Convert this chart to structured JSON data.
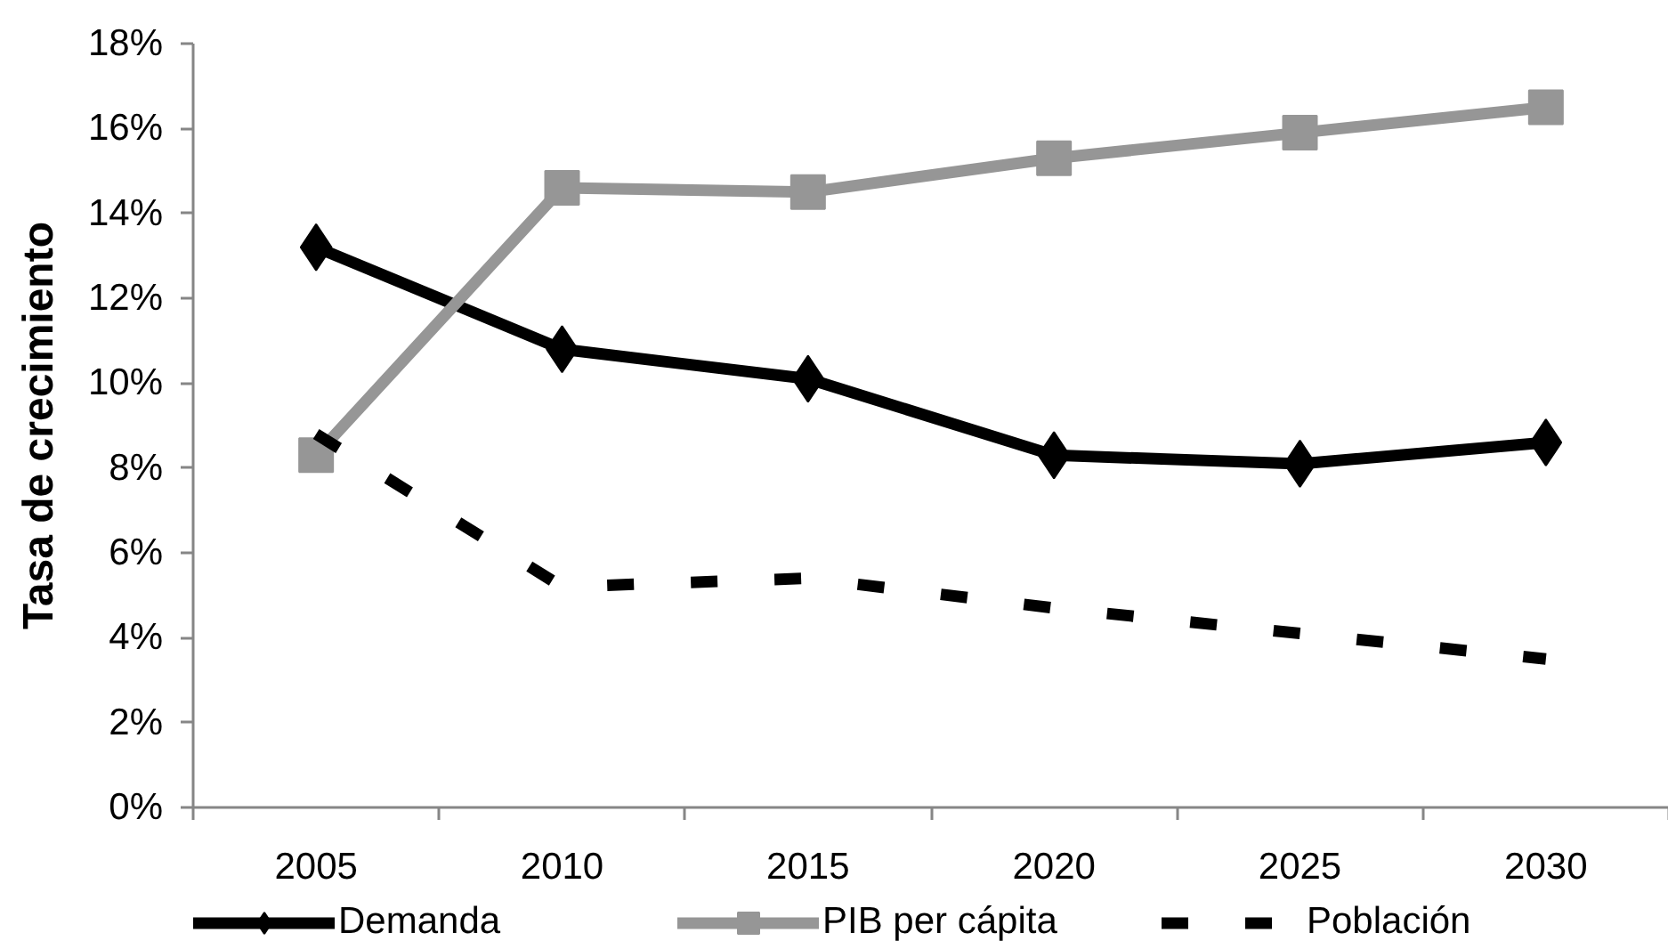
{
  "chart_data": {
    "type": "line",
    "ylabel": "Tasa de crecimiento",
    "categories": [
      "2005",
      "2010",
      "2015",
      "2020",
      "2025",
      "2030"
    ],
    "series": [
      {
        "name": "Demanda",
        "color": "#000000",
        "marker": "diamond",
        "line_style": "solid",
        "values": [
          13.2,
          10.8,
          10.1,
          8.3,
          8.1,
          8.6
        ]
      },
      {
        "name": "PIB per cápita",
        "color": "#969696",
        "marker": "square",
        "line_style": "solid",
        "values": [
          8.3,
          14.6,
          14.5,
          15.3,
          15.9,
          16.5
        ]
      },
      {
        "name": "Población",
        "color": "#000000",
        "marker": "none",
        "line_style": "dashed",
        "values": [
          8.8,
          5.2,
          5.4,
          4.7,
          4.1,
          3.5
        ]
      }
    ],
    "ylim": [
      0,
      18
    ],
    "yticks": [
      {
        "value": 0,
        "label": "0%"
      },
      {
        "value": 2,
        "label": "2%"
      },
      {
        "value": 4,
        "label": "4%"
      },
      {
        "value": 6,
        "label": "6%"
      },
      {
        "value": 8,
        "label": "8%"
      },
      {
        "value": 10,
        "label": "10%"
      },
      {
        "value": 12,
        "label": "12%"
      },
      {
        "value": 14,
        "label": "14%"
      },
      {
        "value": 16,
        "label": "16%"
      },
      {
        "value": 18,
        "label": "18%"
      }
    ],
    "grid": false,
    "legend": "bottom"
  }
}
